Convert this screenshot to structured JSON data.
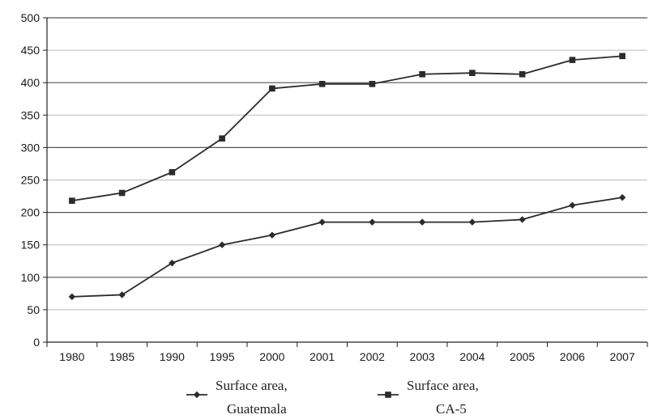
{
  "chart_data": {
    "type": "line",
    "title": "",
    "xlabel": "",
    "ylabel": "",
    "categories": [
      "1980",
      "1985",
      "1990",
      "1995",
      "2000",
      "2001",
      "2002",
      "2003",
      "2004",
      "2005",
      "2006",
      "2007"
    ],
    "ylim": [
      0,
      500
    ],
    "yticks": [
      0,
      50,
      100,
      150,
      200,
      250,
      300,
      350,
      400,
      450,
      500
    ],
    "grid": "horizontal",
    "legend_position": "bottom",
    "series": [
      {
        "name": "Surface area, Guatemala",
        "legend_lines": [
          "Surface area,",
          "Guatemala"
        ],
        "marker": "diamond",
        "values": [
          70,
          73,
          122,
          150,
          165,
          185,
          185,
          185,
          185,
          189,
          211,
          223
        ]
      },
      {
        "name": "Surface area, CA-5",
        "legend_lines": [
          "Surface area,",
          "CA-5"
        ],
        "marker": "square",
        "values": [
          218,
          230,
          262,
          314,
          391,
          398,
          398,
          413,
          415,
          413,
          435,
          441
        ]
      }
    ],
    "colors": {
      "line": "#2b2b2b",
      "grid_major": "#555555",
      "grid_minor": "#bbbbbb",
      "axis": "#222222"
    }
  }
}
